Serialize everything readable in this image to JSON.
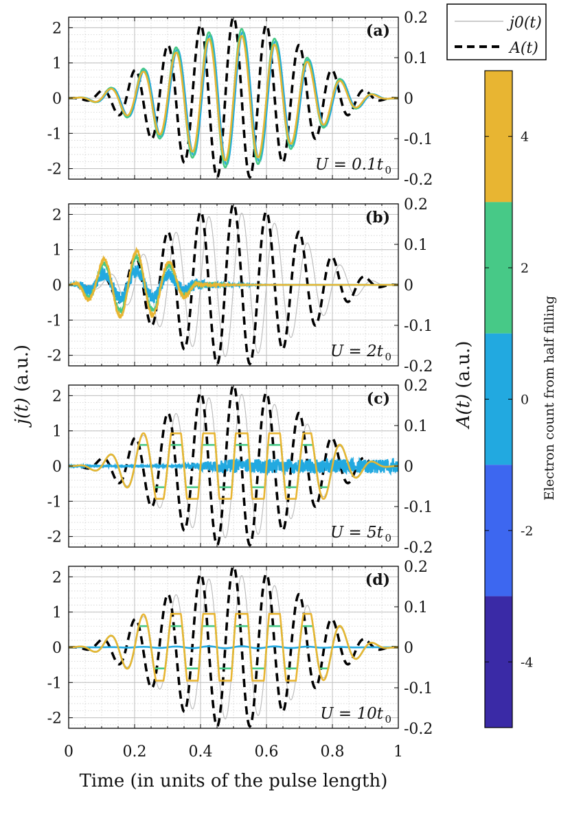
{
  "chart_data": {
    "type": "line",
    "x_axis": {
      "label": "Time (in units of the pulse length)",
      "range": [
        0,
        1
      ],
      "ticks": [
        "0",
        "0.2",
        "0.4",
        "0.6",
        "0.8",
        "1"
      ]
    },
    "y_axis_left": {
      "label_main": "j(t)",
      "label_rest": " (a.u.)",
      "range": [
        -2.3,
        2.3
      ],
      "ticks": [
        "-2",
        "-1",
        "0",
        "1",
        "2"
      ]
    },
    "y_axis_right": {
      "label_main": "A(t)",
      "label_rest": " (a.u.)",
      "range": [
        -0.2,
        0.2
      ],
      "ticks": [
        "-0.2",
        "-0.1",
        "0",
        "0.1",
        "0.2"
      ]
    },
    "legend": {
      "position": "top-right",
      "entries": [
        "j0(t)",
        "A(t)"
      ]
    },
    "colorbar": {
      "label": "Electron count from half filling",
      "ticks": [
        "-4",
        "-2",
        "0",
        "2",
        "4"
      ],
      "colors": [
        "#3a2aa6",
        "#3d67f0",
        "#22a9e0",
        "#47c987",
        "#e8b532"
      ]
    },
    "pulse": {
      "cycles": 10,
      "envelope": "sin^2",
      "j0_amp": 2.05,
      "A_amp": 0.2
    },
    "panels": [
      {
        "tag": "(a)",
        "u_label": "U = 0.1t0",
        "U_main": "U = 0.1",
        "U_sub": "0",
        "series": [
          {
            "name": "N=+4",
            "color": "#e8b532",
            "amp": 1.78
          },
          {
            "name": "N=+2",
            "color": "#47c987",
            "amp": 1.98
          },
          {
            "name": "N=0",
            "color": "#22a9e0",
            "amp": 1.9
          }
        ]
      },
      {
        "tag": "(b)",
        "u_label": "U = 2t0",
        "U_main": "U = 2",
        "U_sub": "0",
        "series": [
          {
            "name": "N=+4",
            "color": "#e8b532",
            "peak": 0.95
          },
          {
            "name": "N=+2",
            "color": "#47c987",
            "peak": 0.8
          },
          {
            "name": "N=0",
            "color": "#22a9e0",
            "peak": 0.4
          }
        ]
      },
      {
        "tag": "(c)",
        "u_label": "U = 5t0",
        "U_main": "U = 5",
        "U_sub": "0",
        "series": [
          {
            "name": "N=+4",
            "color": "#e8b532",
            "plateau": 0.93
          },
          {
            "name": "N=+2",
            "color": "#47c987",
            "plateau": 0.6
          },
          {
            "name": "N=0",
            "color": "#22a9e0",
            "noise": 0.2
          }
        ]
      },
      {
        "tag": "(d)",
        "u_label": "U = 10t0",
        "U_main": "U = 10",
        "U_sub": "0",
        "series": [
          {
            "name": "N=+4",
            "color": "#e8b532",
            "plateau": 0.95
          },
          {
            "name": "N=+2",
            "color": "#47c987",
            "plateau": 0.6
          },
          {
            "name": "N=0",
            "color": "#22a9e0",
            "flat": 0.03
          }
        ]
      }
    ]
  }
}
